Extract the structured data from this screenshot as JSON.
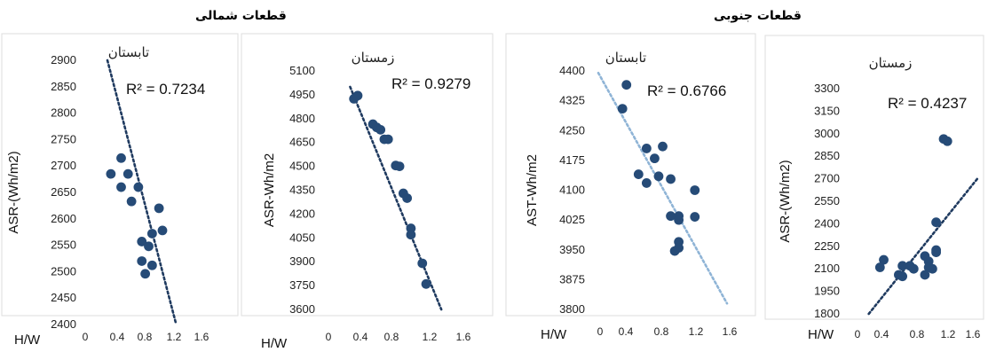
{
  "groups": {
    "north": "قطعات شمالی",
    "south": "قطعات جنوبی"
  },
  "colors": {
    "marker": "#264b77",
    "trend_dark": "#1f3a5f",
    "trend_light": "#8fb4d6",
    "frame": "#dddddd"
  },
  "chart_data": [
    {
      "type": "scatter",
      "title": "تابستان",
      "group": "قطعات شمالی",
      "xlabel": "H/W",
      "ylabel": "ASR-(Wh/m2)",
      "r2": "R² = 0.7234",
      "xlim": [
        0,
        1.6
      ],
      "ylim": [
        2400,
        2900
      ],
      "yticks": [
        "2400",
        "2450",
        "2500",
        "2550",
        "2600",
        "2650",
        "2700",
        "2750",
        "2800",
        "2850",
        "2900"
      ],
      "xticks": [
        "0",
        "0.4",
        "0.8",
        "1.2",
        "1.6"
      ],
      "trendline": [
        [
          0.4,
          2900
        ],
        [
          1.4,
          2400
        ]
      ],
      "trend_color": "dark",
      "points": [
        [
          0.6,
          2715
        ],
        [
          0.45,
          2685
        ],
        [
          0.7,
          2685
        ],
        [
          0.6,
          2660
        ],
        [
          0.85,
          2660
        ],
        [
          0.75,
          2633
        ],
        [
          1.15,
          2620
        ],
        [
          1.2,
          2578
        ],
        [
          1.05,
          2572
        ],
        [
          0.9,
          2557
        ],
        [
          1.0,
          2548
        ],
        [
          0.9,
          2520
        ],
        [
          1.05,
          2512
        ],
        [
          0.95,
          2496
        ]
      ]
    },
    {
      "type": "scatter",
      "title": "زمستان",
      "group": "قطعات شمالی",
      "xlabel": "H/W",
      "ylabel": "ASR-Wh/m2",
      "r2": "R² = 0.9279",
      "xlim": [
        0,
        1.6
      ],
      "ylim": [
        3600,
        5100
      ],
      "yticks": [
        "3600",
        "3750",
        "3900",
        "4050",
        "4200",
        "4350",
        "4500",
        "4650",
        "4800",
        "4950",
        "5100"
      ],
      "xticks": [
        "0",
        "0.4",
        "0.8",
        "1.2",
        "1.6"
      ],
      "trendline": [
        [
          0.25,
          5000
        ],
        [
          1.45,
          3600
        ]
      ],
      "trend_color": "dark",
      "points": [
        [
          0.3,
          4925
        ],
        [
          0.35,
          4945
        ],
        [
          0.55,
          4765
        ],
        [
          0.6,
          4745
        ],
        [
          0.65,
          4730
        ],
        [
          0.7,
          4670
        ],
        [
          0.75,
          4670
        ],
        [
          0.85,
          4505
        ],
        [
          0.9,
          4500
        ],
        [
          0.95,
          4330
        ],
        [
          1.0,
          4300
        ],
        [
          1.05,
          4110
        ],
        [
          1.05,
          4070
        ],
        [
          1.2,
          3890
        ],
        [
          1.25,
          3760
        ]
      ]
    },
    {
      "type": "scatter",
      "title": "تابستان",
      "group": "قطعات جنوبی",
      "xlabel": "H/W",
      "ylabel": "AST-Wh/m2",
      "r2": "R² = 0.6766",
      "xlim": [
        0,
        1.6
      ],
      "ylim": [
        3800,
        4400
      ],
      "yticks": [
        "3800",
        "3875",
        "3950",
        "4025",
        "4100",
        "4175",
        "4250",
        "4325",
        "4400"
      ],
      "xticks": [
        "0",
        "0.4",
        "0.8",
        "1.2",
        "1.6"
      ],
      "trendline": [
        [
          0.0,
          4395
        ],
        [
          1.6,
          3815
        ]
      ],
      "trend_color": "light",
      "points": [
        [
          0.35,
          4365
        ],
        [
          0.3,
          4305
        ],
        [
          0.6,
          4205
        ],
        [
          0.8,
          4210
        ],
        [
          0.7,
          4180
        ],
        [
          0.5,
          4140
        ],
        [
          0.75,
          4135
        ],
        [
          0.6,
          4118
        ],
        [
          0.9,
          4128
        ],
        [
          1.2,
          4100
        ],
        [
          0.9,
          4035
        ],
        [
          1.0,
          4035
        ],
        [
          1.0,
          4025
        ],
        [
          1.2,
          4033
        ],
        [
          1.0,
          3970
        ],
        [
          1.0,
          3955
        ],
        [
          0.95,
          3947
        ]
      ]
    },
    {
      "type": "scatter",
      "title": "زمستان",
      "group": "قطعات جنوبی",
      "xlabel": "H/W",
      "ylabel": "ASR-(Wh/m2)",
      "r2": "R² = 0.4237",
      "xlim": [
        0,
        1.6
      ],
      "ylim": [
        1800,
        3300
      ],
      "yticks": [
        "1800",
        "1950",
        "2100",
        "2250",
        "2400",
        "2550",
        "2700",
        "2850",
        "3000",
        "3150",
        "3300"
      ],
      "xticks": [
        "0",
        "0.4",
        "0.8",
        "1.2",
        "1.6"
      ],
      "trendline": [
        [
          0.15,
          1800
        ],
        [
          1.6,
          2700
        ]
      ],
      "trend_color": "dark",
      "points": [
        [
          1.15,
          2965
        ],
        [
          1.2,
          2950
        ],
        [
          1.05,
          2410
        ],
        [
          1.05,
          2225
        ],
        [
          1.05,
          2210
        ],
        [
          0.9,
          2185
        ],
        [
          0.95,
          2150
        ],
        [
          0.35,
          2160
        ],
        [
          0.3,
          2110
        ],
        [
          0.6,
          2120
        ],
        [
          0.7,
          2120
        ],
        [
          0.75,
          2100
        ],
        [
          0.95,
          2110
        ],
        [
          1.0,
          2100
        ],
        [
          0.55,
          2060
        ],
        [
          0.6,
          2050
        ],
        [
          0.9,
          2060
        ]
      ]
    }
  ]
}
